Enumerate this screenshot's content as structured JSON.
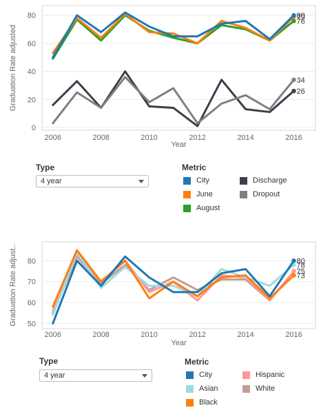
{
  "chart_data": [
    {
      "type": "line",
      "title": "",
      "xlabel": "Year",
      "ylabel": "Graduation Rate adjusted",
      "x": [
        2006,
        2007,
        2008,
        2009,
        2010,
        2011,
        2012,
        2013,
        2014,
        2015,
        2016
      ],
      "xticks": [
        "2006",
        "2008",
        "2010",
        "2012",
        "2014",
        "2016"
      ],
      "yticks": [
        "0",
        "20",
        "40",
        "60",
        "80"
      ],
      "ylim": [
        -2,
        87
      ],
      "xlim": [
        2005.55,
        2016.9
      ],
      "grid": "horizontal",
      "series": [
        {
          "name": "Discharge",
          "color": "#3b3f4a",
          "values": [
            16,
            33,
            14,
            40,
            15,
            14,
            1,
            34,
            13,
            11,
            26
          ],
          "end_label": "26"
        },
        {
          "name": "Dropout",
          "color": "#7f7f7f",
          "values": [
            3,
            25,
            14,
            36,
            18,
            28,
            3,
            17,
            23,
            13,
            34
          ],
          "end_label": "34"
        },
        {
          "name": "August",
          "color": "#2ca02c",
          "values": [
            49,
            77,
            62,
            80,
            69,
            64,
            60,
            73,
            70,
            62,
            76
          ],
          "end_label": "76"
        },
        {
          "name": "June",
          "color": "#ff7f0e",
          "values": [
            53,
            78,
            64,
            81,
            68,
            67,
            60,
            76,
            71,
            62,
            79
          ],
          "end_label": "79"
        },
        {
          "name": "City",
          "color": "#1f77b4",
          "values": [
            50,
            80,
            68,
            82,
            72,
            65,
            65,
            74,
            76,
            63,
            80
          ],
          "end_label": "80"
        }
      ]
    },
    {
      "type": "line",
      "title": "",
      "xlabel": "Year",
      "ylabel": "Graduation Rate adjust..",
      "x": [
        2006,
        2007,
        2008,
        2009,
        2010,
        2011,
        2012,
        2013,
        2014,
        2015,
        2016
      ],
      "xticks": [
        "2006",
        "2008",
        "2010",
        "2012",
        "2014",
        "2016"
      ],
      "yticks": [
        "50",
        "60",
        "70",
        "80"
      ],
      "ylim": [
        47.5,
        89
      ],
      "xlim": [
        2005.55,
        2016.9
      ],
      "grid": "horizontal",
      "series": [
        {
          "name": "White",
          "color": "#c49c94",
          "values": [
            55,
            82,
            69,
            78,
            66,
            72,
            66,
            71,
            71,
            61,
            75
          ],
          "end_label": ""
        },
        {
          "name": "Hispanic",
          "color": "#ff9896",
          "values": [
            56,
            83,
            70,
            80,
            65,
            70,
            61,
            73,
            72,
            61,
            75
          ],
          "end_label": "75"
        },
        {
          "name": "Asian",
          "color": "#9edae5",
          "values": [
            54,
            84,
            67,
            77,
            68,
            68,
            63,
            76,
            72,
            68,
            78
          ],
          "end_label": "78"
        },
        {
          "name": "Black",
          "color": "#ff7f0e",
          "values": [
            58,
            85,
            70,
            80,
            62,
            70,
            63,
            72,
            73,
            62,
            73
          ],
          "end_label": "73"
        },
        {
          "name": "City",
          "color": "#1f77b4",
          "values": [
            50,
            80,
            68,
            82,
            72,
            65,
            65,
            74,
            76,
            63,
            80
          ],
          "end_label": "80"
        }
      ]
    }
  ],
  "controls": [
    {
      "type_label": "Type",
      "type_value": "4 year",
      "metric_label": "Metric",
      "legend": [
        {
          "name": "City",
          "color": "#1f77b4"
        },
        {
          "name": "June",
          "color": "#ff7f0e"
        },
        {
          "name": "August",
          "color": "#2ca02c"
        },
        {
          "name": "Discharge",
          "color": "#3b3f4a"
        },
        {
          "name": "Dropout",
          "color": "#7f7f7f"
        }
      ]
    },
    {
      "type_label": "Type",
      "type_value": "4 year",
      "metric_label": "Metric",
      "legend": [
        {
          "name": "City",
          "color": "#1f77b4"
        },
        {
          "name": "Asian",
          "color": "#9edae5"
        },
        {
          "name": "Black",
          "color": "#ff7f0e"
        },
        {
          "name": "Hispanic",
          "color": "#ff9896"
        },
        {
          "name": "White",
          "color": "#c49c94"
        }
      ]
    }
  ]
}
